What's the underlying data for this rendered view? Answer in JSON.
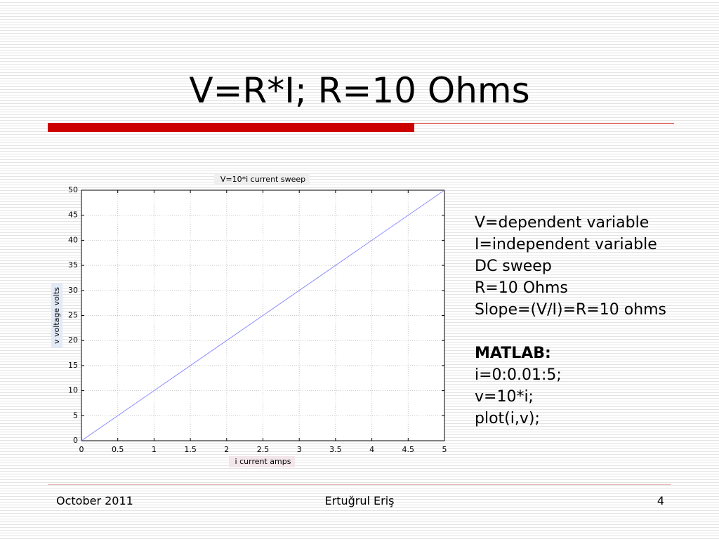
{
  "title": "V=R*I; R=10 Ohms",
  "chart_data": {
    "type": "line",
    "title": "V=10*i  current sweep",
    "x_label": "i current amps",
    "y_label": "v voltage volts",
    "x": [
      0,
      1,
      2,
      3,
      4,
      5
    ],
    "series": [
      {
        "color": "#8c8cff",
        "values": [
          0,
          10,
          20,
          30,
          40,
          50
        ]
      }
    ],
    "xlim": [
      0,
      5
    ],
    "ylim": [
      0,
      50
    ],
    "xticks": [
      0,
      0.5,
      1,
      1.5,
      2,
      2.5,
      3,
      3.5,
      4,
      4.5,
      5
    ],
    "yticks": [
      0,
      5,
      10,
      15,
      20,
      25,
      30,
      35,
      40,
      45,
      50
    ],
    "grid": true
  },
  "notes": [
    "V=dependent variable",
    "I=independent variable",
    "DC sweep",
    "R=10 Ohms",
    "Slope=(V/I)=R=10 ohms"
  ],
  "code_title": "MATLAB:",
  "code": [
    "i=0:0.01:5;",
    "v=10*i;",
    "plot(i,v);"
  ],
  "footer": {
    "date": "October 2011",
    "author": "Ertuğrul Eriş",
    "page": "4"
  }
}
